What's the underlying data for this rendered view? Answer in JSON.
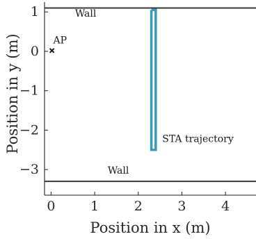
{
  "chart_data": {
    "type": "line",
    "xlabel": "Position in x (m)",
    "ylabel": "Position in y (m)",
    "xlim": [
      -0.15,
      4.7
    ],
    "ylim": [
      -3.65,
      1.25
    ],
    "xticks": [
      0,
      1,
      2,
      3,
      4
    ],
    "xtick_labels": [
      "0",
      "1",
      "2",
      "3",
      "4"
    ],
    "yticks": [
      1,
      0,
      -1,
      -2,
      -3
    ],
    "ytick_labels": [
      "1",
      "0",
      "−1",
      "−2",
      "−3"
    ],
    "grid": false,
    "series": [
      {
        "kind": "wall",
        "label": "Wall",
        "color": "#3a3a3a",
        "x": [
          -0.15,
          4.7
        ],
        "y": [
          1.1,
          1.1
        ]
      },
      {
        "kind": "wall",
        "label": "Wall",
        "color": "#3a3a3a",
        "x": [
          -0.15,
          4.7
        ],
        "y": [
          -3.3,
          -3.3
        ]
      },
      {
        "kind": "trajectory",
        "label": "STA trajectory",
        "color": "#3d9bb8",
        "x": [
          2.3,
          2.4,
          2.4,
          2.3,
          2.3
        ],
        "y": [
          1.05,
          1.05,
          -2.5,
          -2.5,
          1.05
        ]
      },
      {
        "kind": "point",
        "label": "AP",
        "color": "#1a1a1a",
        "x": [
          0.02
        ],
        "y": [
          0.02
        ]
      }
    ],
    "annotations": [
      {
        "text": "Wall",
        "x": 0.55,
        "y": 0.88,
        "anchor": "start"
      },
      {
        "text": "Wall",
        "x": 1.3,
        "y": -3.1,
        "anchor": "start"
      },
      {
        "text": "STA trajectory",
        "x": 2.55,
        "y": -2.3,
        "anchor": "start"
      },
      {
        "text": "AP",
        "x": 0.05,
        "y": 0.2,
        "anchor": "start"
      }
    ]
  }
}
